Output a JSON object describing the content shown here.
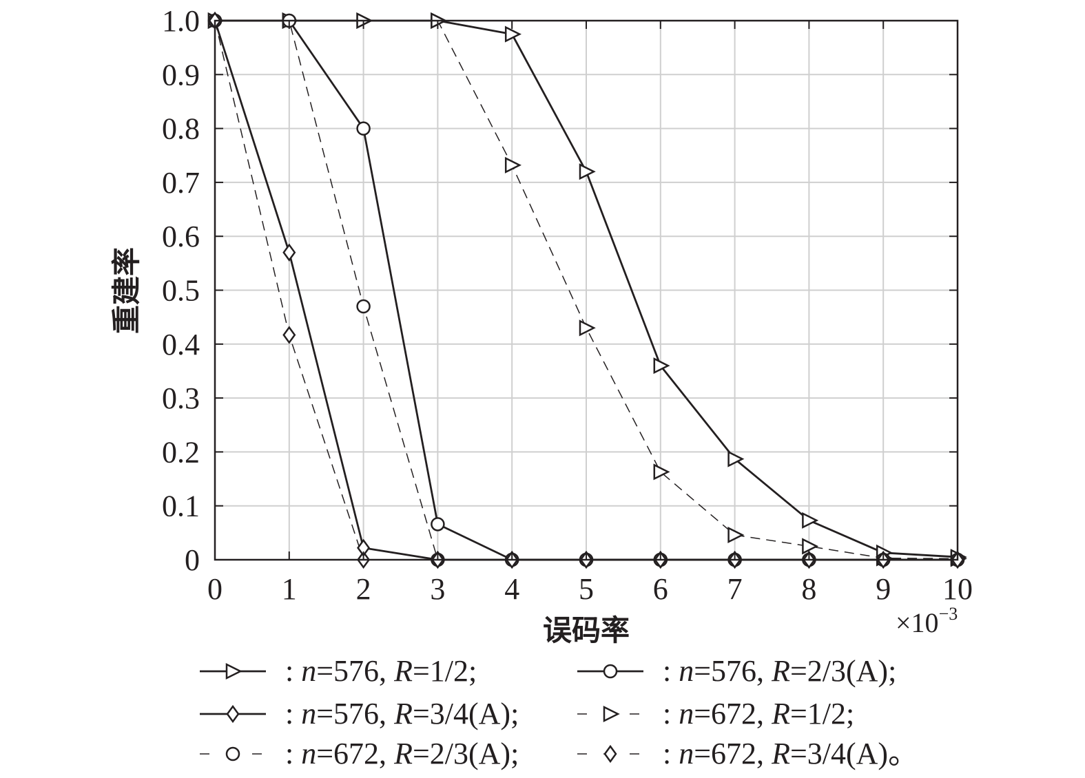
{
  "chart_data": {
    "type": "line",
    "xlabel": "误码率",
    "ylabel": "重建率",
    "x_exponent_base": "×10",
    "x_exponent_power": "−3",
    "xlim": [
      0,
      10
    ],
    "ylim": [
      0,
      1.0
    ],
    "grid": true,
    "legend_placement": "bottom",
    "x": [
      0,
      1,
      2,
      3,
      4,
      5,
      6,
      7,
      8,
      9,
      10
    ],
    "xticks": [
      "0",
      "1",
      "2",
      "3",
      "4",
      "5",
      "6",
      "7",
      "8",
      "9",
      "10"
    ],
    "yticks": [
      "0",
      "0.1",
      "0.2",
      "0.3",
      "0.4",
      "0.5",
      "0.6",
      "0.7",
      "0.8",
      "0.9",
      "1.0"
    ],
    "series": [
      {
        "name": ": n=576, R=1/2;",
        "n": "576",
        "R": "1/2",
        "suffix": ";",
        "marker": "triangle-right",
        "dashed": false,
        "values": [
          1.0,
          1.0,
          1.0,
          1.0,
          0.975,
          0.72,
          0.36,
          0.187,
          0.073,
          0.013,
          0.005
        ]
      },
      {
        "name": ": n=576, R=2/3(A);",
        "n": "576",
        "R": "2/3(A)",
        "suffix": ";",
        "marker": "circle",
        "dashed": false,
        "values": [
          1.0,
          1.0,
          0.8,
          0.066,
          0,
          0,
          0,
          0,
          0,
          0,
          0
        ]
      },
      {
        "name": ": n=576, R=3/4(A);",
        "n": "576",
        "R": "3/4(A)",
        "suffix": ";",
        "marker": "diamond",
        "dashed": false,
        "values": [
          1.0,
          0.57,
          0.022,
          0,
          0,
          0,
          0,
          0,
          0,
          0,
          0
        ]
      },
      {
        "name": ": n=672, R=1/2;",
        "n": "672",
        "R": "1/2",
        "suffix": ";",
        "marker": "triangle-right",
        "dashed": true,
        "values": [
          1.0,
          1.0,
          1.0,
          1.0,
          0.732,
          0.43,
          0.163,
          0.046,
          0.025,
          0.003,
          0.002
        ]
      },
      {
        "name": ": n=672, R=2/3(A);",
        "n": "672",
        "R": "2/3(A)",
        "suffix": ";",
        "marker": "circle",
        "dashed": true,
        "values": [
          1.0,
          1.0,
          0.47,
          0,
          0,
          0,
          0,
          0,
          0,
          0,
          0
        ]
      },
      {
        "name": ": n=672, R=3/4(A)。",
        "n": "672",
        "R": "3/4(A)",
        "suffix": "。",
        "marker": "diamond",
        "dashed": true,
        "values": [
          1.0,
          0.417,
          0,
          0,
          0,
          0,
          0,
          0,
          0,
          0,
          0
        ]
      }
    ],
    "colors": {
      "line": "#231f20",
      "grid": "#cfcfcf",
      "background": "#ffffff"
    }
  }
}
